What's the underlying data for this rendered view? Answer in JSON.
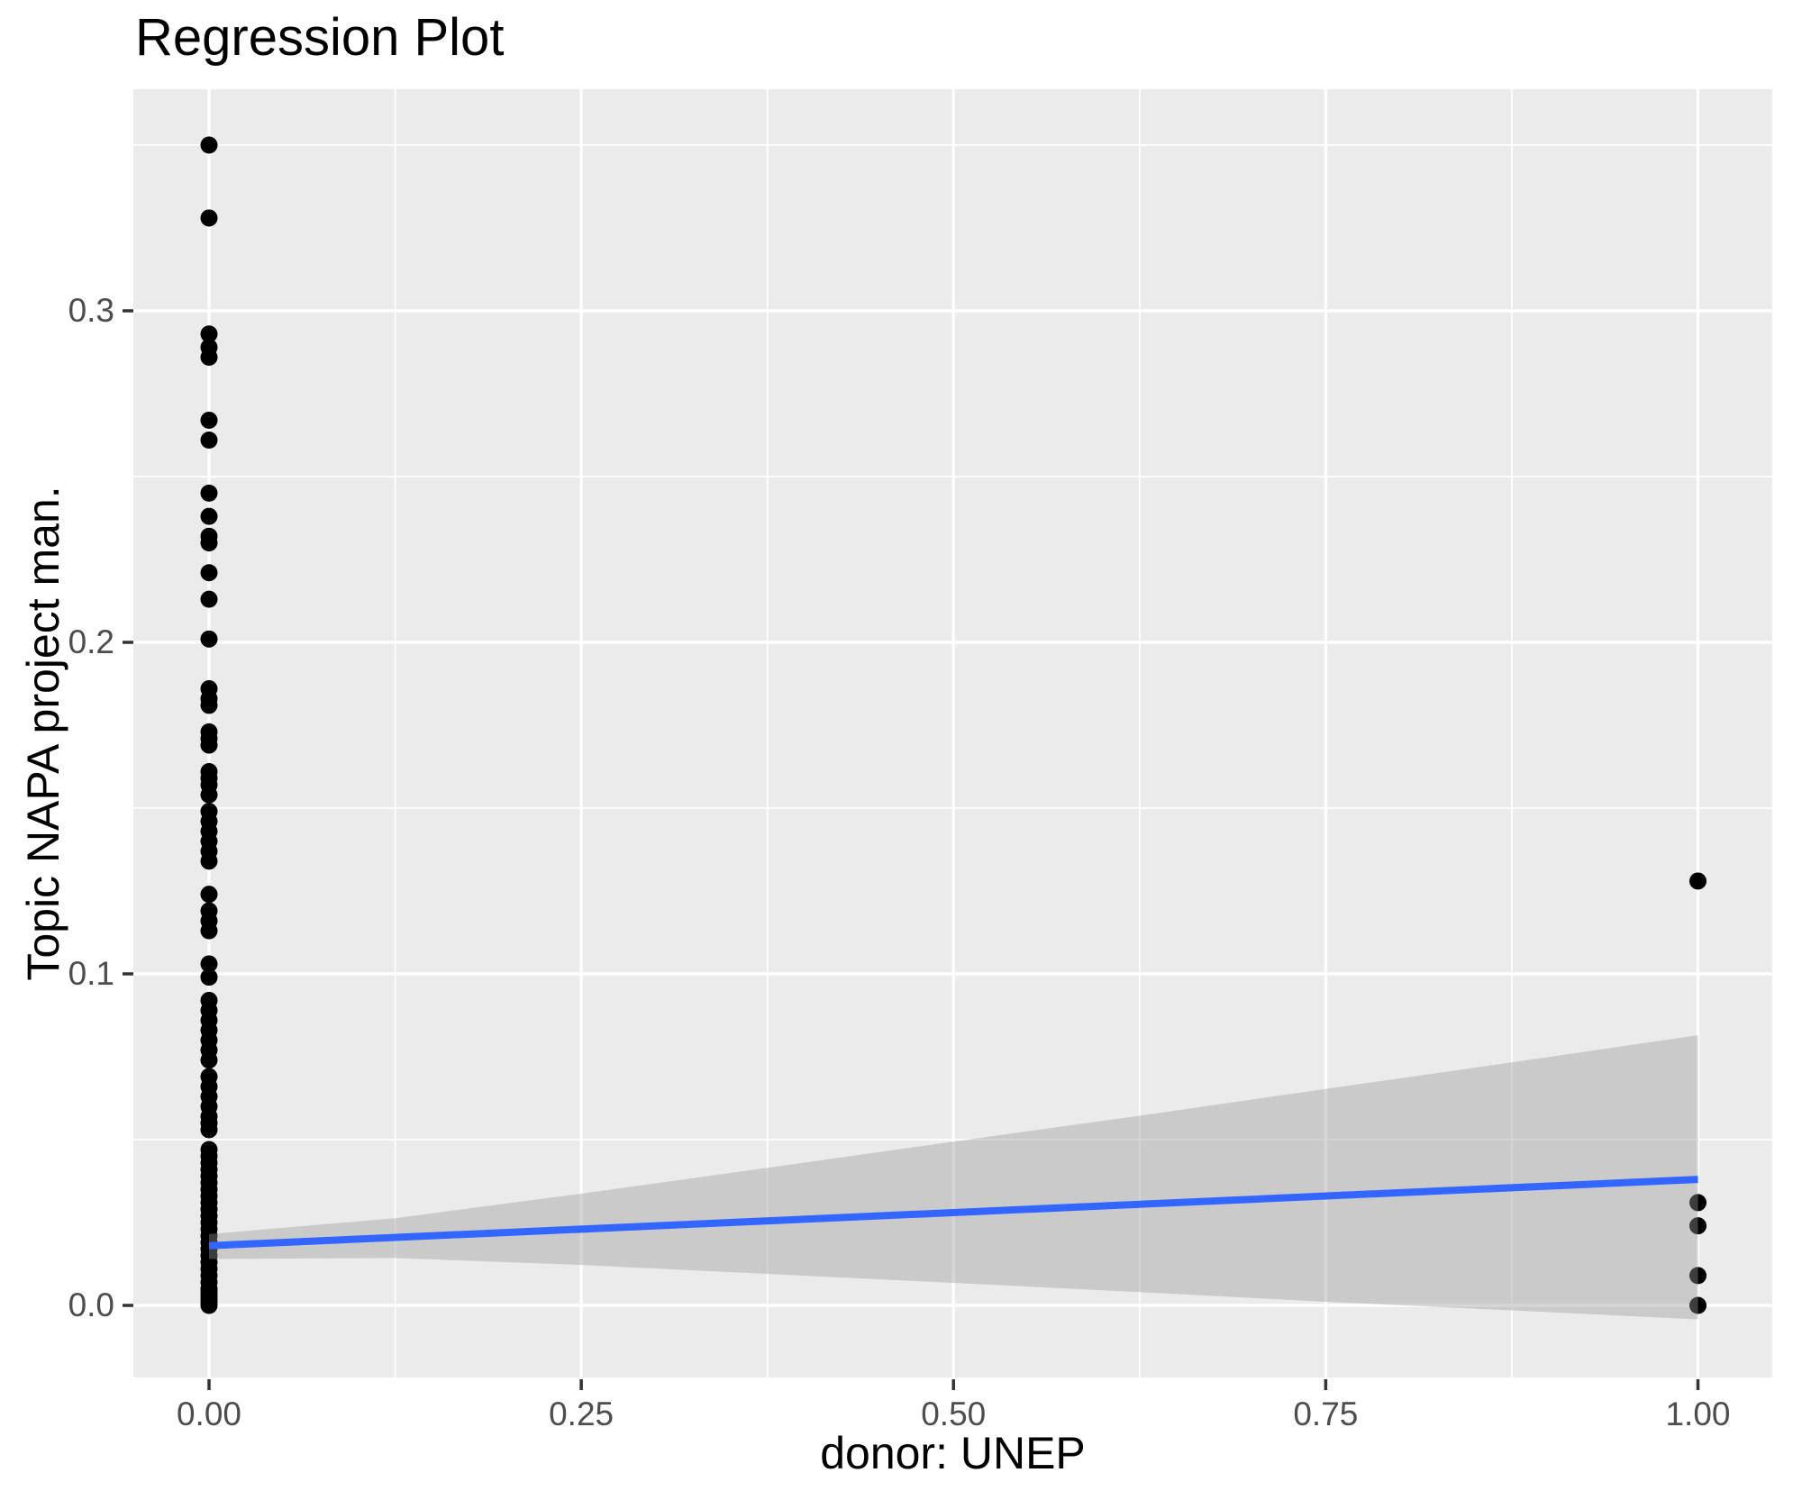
{
  "title": "Regression Plot",
  "chart_data": {
    "type": "scatter",
    "title": "Regression Plot",
    "xlabel": "donor: UNEP",
    "ylabel": "Topic NAPA project man.",
    "xlim": [
      -0.051,
      1.051
    ],
    "ylim": [
      -0.022,
      0.366
    ],
    "grid": "white major+minor gridlines on grey panel",
    "legend": "none",
    "x_axis": {
      "tick_values": [
        0,
        0.25,
        0.5,
        0.75,
        1
      ],
      "tick_labels": [
        "0.00",
        "0.25",
        "0.50",
        "0.75",
        "1.00"
      ],
      "minor_ticks": [
        0.125,
        0.375,
        0.625,
        0.875
      ]
    },
    "y_axis": {
      "tick_values": [
        0,
        0.1,
        0.2,
        0.3
      ],
      "tick_labels": [
        "0.0",
        "0.1",
        "0.2",
        "0.3"
      ],
      "minor_ticks": [
        0.05,
        0.15,
        0.25,
        0.35
      ]
    },
    "series": [
      {
        "name": "observations at donor UNEP = 0",
        "x": 0,
        "y": [
          0.35,
          0.328,
          0.293,
          0.289,
          0.286,
          0.267,
          0.261,
          0.245,
          0.238,
          0.232,
          0.23,
          0.221,
          0.213,
          0.201,
          0.186,
          0.183,
          0.181,
          0.173,
          0.171,
          0.169,
          0.161,
          0.159,
          0.157,
          0.154,
          0.149,
          0.146,
          0.143,
          0.14,
          0.137,
          0.134,
          0.124,
          0.119,
          0.116,
          0.113,
          0.103,
          0.099,
          0.092,
          0.089,
          0.086,
          0.083,
          0.08,
          0.077,
          0.074,
          0.069,
          0.066,
          0.063,
          0.06,
          0.057,
          0.055,
          0.053,
          0.047,
          0.045,
          0.043,
          0.041,
          0.039,
          0.037,
          0.035,
          0.033,
          0.031,
          0.029,
          0.027,
          0.025,
          0.023,
          0.021,
          0.019,
          0.017,
          0.015,
          0.013,
          0.011,
          0.009,
          0.007,
          0.005,
          0.004,
          0.003,
          0.002,
          0.001,
          0.0
        ]
      },
      {
        "name": "observations at donor UNEP = 1",
        "x": 1,
        "y": [
          0.128,
          0.031,
          0.024,
          0.009,
          0.0
        ]
      }
    ],
    "regression_line": {
      "x": [
        0,
        1
      ],
      "y": [
        0.018,
        0.038
      ]
    },
    "confidence_band": {
      "x": [
        0,
        0.125,
        0.25,
        0.375,
        0.5,
        0.625,
        0.75,
        0.875,
        1
      ],
      "upper": [
        0.0215,
        0.0263,
        0.0337,
        0.0415,
        0.0494,
        0.0572,
        0.0653,
        0.0733,
        0.0815
      ],
      "lower": [
        0.014,
        0.0143,
        0.0122,
        0.0095,
        0.0068,
        0.004,
        0.0011,
        -0.0015,
        -0.0042
      ]
    }
  },
  "style": {
    "panel_bg": "#EBEBEB",
    "gridline_color": "#FFFFFF",
    "point_color": "#000000",
    "regression_line_color": "#3366FF",
    "confidence_band_color": "rgba(153,153,153,0.40)",
    "tick_mark_color": "#333333",
    "tick_label_color": "#4D4D4D",
    "title_color": "#000000"
  }
}
